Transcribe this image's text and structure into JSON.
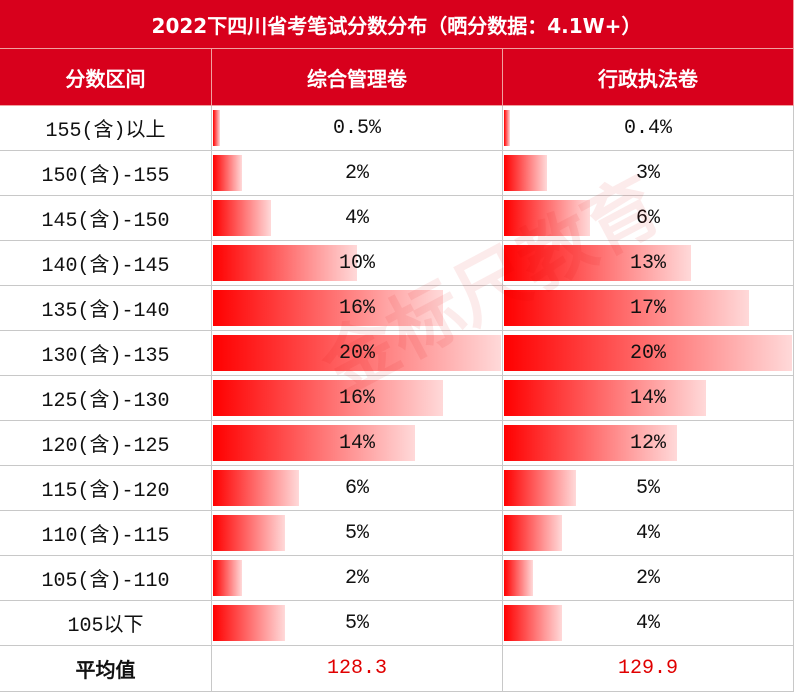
{
  "title": "2022下四川省考笔试分数分布（晒分数据：4.1W+）",
  "header": [
    "分数区间",
    "综合管理卷",
    "行政执法卷"
  ],
  "rows": [
    {
      "range": "155(含)以上",
      "scores": [
        {
          "value": 0.5,
          "label": "0.5%"
        },
        {
          "value": 0.4,
          "label": "0.4%"
        }
      ]
    },
    {
      "range": "150(含)-155",
      "scores": [
        {
          "value": 2,
          "label": "2%"
        },
        {
          "value": 3,
          "label": "3%"
        }
      ]
    },
    {
      "range": "145(含)-150",
      "scores": [
        {
          "value": 4,
          "label": "4%"
        },
        {
          "value": 6,
          "label": "6%"
        }
      ]
    },
    {
      "range": "140(含)-145",
      "scores": [
        {
          "value": 10,
          "label": "10%"
        },
        {
          "value": 13,
          "label": "13%"
        }
      ]
    },
    {
      "range": "135(含)-140",
      "scores": [
        {
          "value": 16,
          "label": "16%"
        },
        {
          "value": 17,
          "label": "17%"
        }
      ]
    },
    {
      "range": "130(含)-135",
      "scores": [
        {
          "value": 20,
          "label": "20%"
        },
        {
          "value": 20,
          "label": "20%"
        }
      ]
    },
    {
      "range": "125(含)-130",
      "scores": [
        {
          "value": 16,
          "label": "16%"
        },
        {
          "value": 14,
          "label": "14%"
        }
      ]
    },
    {
      "range": "120(含)-125",
      "scores": [
        {
          "value": 14,
          "label": "14%"
        },
        {
          "value": 12,
          "label": "12%"
        }
      ]
    },
    {
      "range": "115(含)-120",
      "scores": [
        {
          "value": 6,
          "label": "6%"
        },
        {
          "value": 5,
          "label": "5%"
        }
      ]
    },
    {
      "range": "110(含)-115",
      "scores": [
        {
          "value": 5,
          "label": "5%"
        },
        {
          "value": 4,
          "label": "4%"
        }
      ]
    },
    {
      "range": "105(含)-110",
      "scores": [
        {
          "value": 2,
          "label": "2%"
        },
        {
          "value": 2,
          "label": "2%"
        }
      ]
    },
    {
      "range": "105以下",
      "scores": [
        {
          "value": 5,
          "label": "5%"
        },
        {
          "value": 4,
          "label": "4%"
        }
      ]
    }
  ],
  "average": {
    "label": "平均值",
    "scores": [
      128.3,
      129.9
    ]
  },
  "watermark": "金标尺教育"
}
